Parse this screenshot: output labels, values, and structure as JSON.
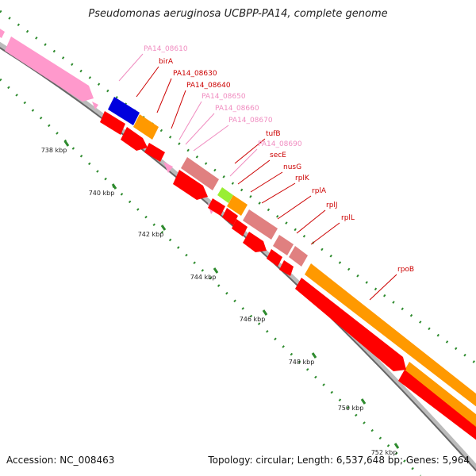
{
  "title": "Pseudomonas aeruginosa UCBPP-PA14, complete genome",
  "accession": "Accession: NC_008463",
  "summary": "Topology: circular; Length: 6,537,648 bp; Genes: 5,964",
  "colors": {
    "label_red": "#cc0000",
    "label_pink": "#f08cc0",
    "gene_red": "#ff0000",
    "gene_orange": "#ff9900",
    "gene_pink": "#ff99cc",
    "gene_salmon": "#e08080",
    "gene_blue": "#0000dd",
    "gene_green": "#99ee33",
    "tick_green": "#2e8b2e"
  },
  "ticks": [
    {
      "label": "738 kbp"
    },
    {
      "label": "740 kbp"
    },
    {
      "label": "742 kbp"
    },
    {
      "label": "744 kbp"
    },
    {
      "label": "746 kbp"
    },
    {
      "label": "748 kbp"
    },
    {
      "label": "750 kbp"
    },
    {
      "label": "752 kbp"
    }
  ],
  "gene_labels": [
    {
      "text": "PA14_08610",
      "color": "pink"
    },
    {
      "text": "birA",
      "color": "red"
    },
    {
      "text": "PA14_08630",
      "color": "red"
    },
    {
      "text": "PA14_08640",
      "color": "red"
    },
    {
      "text": "PA14_08650",
      "color": "pink"
    },
    {
      "text": "PA14_08660",
      "color": "pink"
    },
    {
      "text": "PA14_08670",
      "color": "pink"
    },
    {
      "text": "tufB",
      "color": "red"
    },
    {
      "text": "PA14_08690",
      "color": "pink"
    },
    {
      "text": "secE",
      "color": "red"
    },
    {
      "text": "nusG",
      "color": "red"
    },
    {
      "text": "rplK",
      "color": "red"
    },
    {
      "text": "rplA",
      "color": "red"
    },
    {
      "text": "rplJ",
      "color": "red"
    },
    {
      "text": "rplL",
      "color": "red"
    },
    {
      "text": "rpoB",
      "color": "red"
    }
  ]
}
